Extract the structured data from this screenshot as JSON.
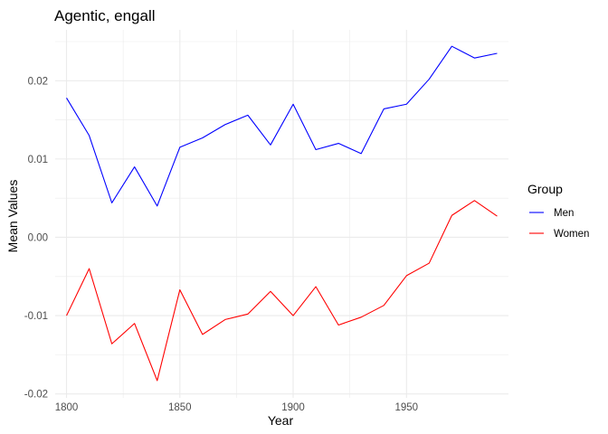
{
  "chart_data": {
    "type": "line",
    "title": "Agentic, engall",
    "xlabel": "Year",
    "ylabel": "Mean Values",
    "x": [
      1800,
      1810,
      1820,
      1830,
      1840,
      1850,
      1860,
      1870,
      1880,
      1890,
      1900,
      1910,
      1920,
      1930,
      1940,
      1950,
      1960,
      1970,
      1980,
      1990
    ],
    "series": [
      {
        "name": "Men",
        "color": "#0000ff",
        "values": [
          0.0178,
          0.013,
          0.0044,
          0.009,
          0.004,
          0.0115,
          0.0127,
          0.0144,
          0.0156,
          0.0118,
          0.017,
          0.0112,
          0.012,
          0.0107,
          0.0164,
          0.017,
          0.0202,
          0.0244,
          0.0229,
          0.0235
        ]
      },
      {
        "name": "Women",
        "color": "#ff0000",
        "values": [
          -0.01,
          -0.004,
          -0.0136,
          -0.011,
          -0.0183,
          -0.0067,
          -0.0124,
          -0.0105,
          -0.0098,
          -0.0069,
          -0.01,
          -0.0063,
          -0.0112,
          -0.0102,
          -0.0087,
          -0.0049,
          -0.0033,
          0.0028,
          0.0047,
          0.0027
        ]
      }
    ],
    "xlim": [
      1795,
      1995
    ],
    "ylim": [
      -0.0205,
      0.0265
    ],
    "x_ticks": [
      1800,
      1850,
      1900,
      1950
    ],
    "x_tick_labels": [
      "1800",
      "1850",
      "1900",
      "1950"
    ],
    "y_ticks": [
      -0.02,
      -0.01,
      0.0,
      0.01,
      0.02
    ],
    "y_tick_labels": [
      "-0.02",
      "-0.01",
      "0.00",
      "0.01",
      "0.02"
    ],
    "grid": true,
    "legend": {
      "title": "Group",
      "position": "right"
    }
  }
}
